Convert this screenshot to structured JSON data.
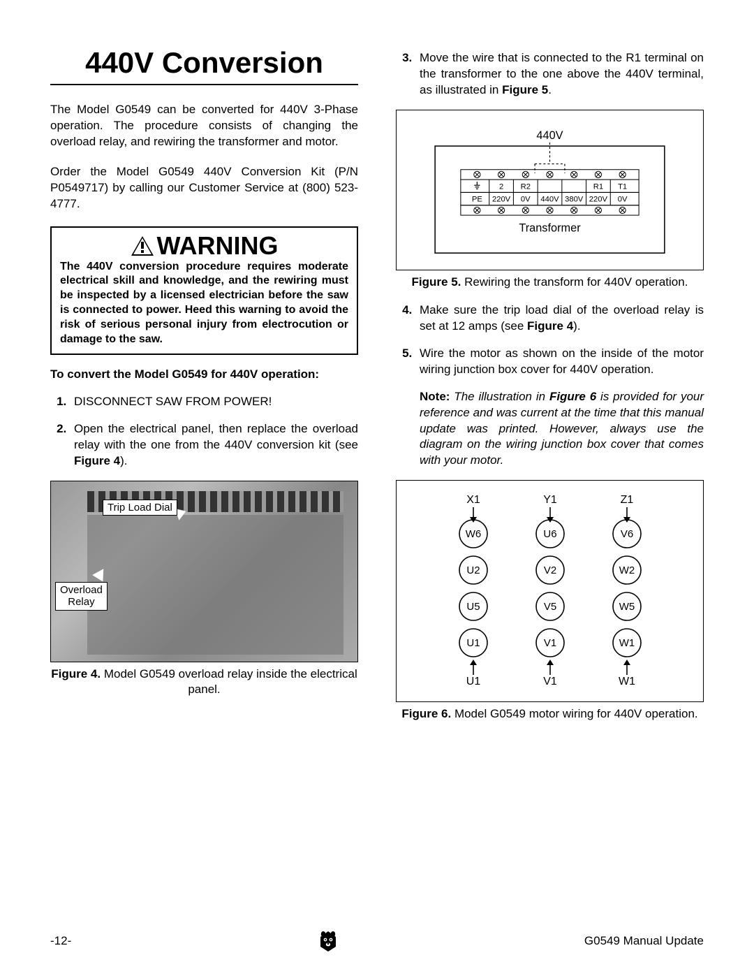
{
  "title": "440V Conversion",
  "intro1": "The Model G0549 can be converted for 440V 3-Phase operation. The procedure consists of changing the overload relay, and rewiring the transformer and motor.",
  "intro2": "Order the Model G0549 440V Conversion Kit (P/N P0549717) by calling our Customer Service at (800) 523-4777.",
  "warning_head": "WARNING",
  "warning_body": "The 440V conversion procedure requires moderate electrical skill and knowledge, and the rewiring must be inspected by a licensed electrician before the saw is connected to power. Heed this warning to avoid the risk of serious personal injury from electrocution or damage to the saw.",
  "lead": "To convert the Model G0549 for 440V opera­tion:",
  "steps_left": {
    "s1": "DISCONNECT SAW FROM POWER!",
    "s2_a": "Open the electrical panel, then replace the overload relay with the one from the 440V conversion kit (see ",
    "s2_b": "Figure 4",
    "s2_c": ")."
  },
  "steps_right": {
    "s3_a": "Move the wire that is connected to the R1 terminal on the transformer to the one above the 440V terminal, as illustrated in ",
    "s3_b": "Figure 5",
    "s3_c": ".",
    "s4_a": "Make sure the trip load dial of the overload relay is set at 12 amps (see ",
    "s4_b": "Figure 4",
    "s4_c": ").",
    "s5": "Wire the motor as shown on the inside of the motor wiring junction box cover for 440V operation."
  },
  "note_lead": "Note:",
  "note_a": " The illustration in ",
  "note_b": "Figure 6",
  "note_c": " is provided for your reference and was current at the time that this manual update was printed. However, always use the diagram on the wiring junction box cover that comes with your motor.",
  "fig4": {
    "caption_b": "Figure 4.",
    "caption": " Model G0549 overload relay inside the electrical panel.",
    "label_trip": "Trip Load Dial",
    "label_relay_1": "Overload",
    "label_relay_2": "Relay"
  },
  "fig5": {
    "caption_b": "Figure 5.",
    "caption": " Rewiring the transform for 440V operation.",
    "v440": "440V",
    "transformer": "Transformer",
    "top_cells": [
      "",
      "2",
      "R2",
      "",
      "",
      "R1",
      "T1"
    ],
    "bot_cells": [
      "PE",
      "220V",
      "0V",
      "440V",
      "380V",
      "220V",
      "0V"
    ]
  },
  "fig6": {
    "caption_b": "Figure 6.",
    "caption": " Model G0549 motor wiring for 440V operation.",
    "top_labels": [
      "X1",
      "Y1",
      "Z1"
    ],
    "circles": [
      [
        "W6",
        "U6",
        "V6"
      ],
      [
        "U2",
        "V2",
        "W2"
      ],
      [
        "U5",
        "V5",
        "W5"
      ],
      [
        "U1",
        "V1",
        "W1"
      ]
    ],
    "bot_labels": [
      "U1",
      "V1",
      "W1"
    ]
  },
  "footer": {
    "page": "-12-",
    "right": "G0549 Manual Update"
  }
}
